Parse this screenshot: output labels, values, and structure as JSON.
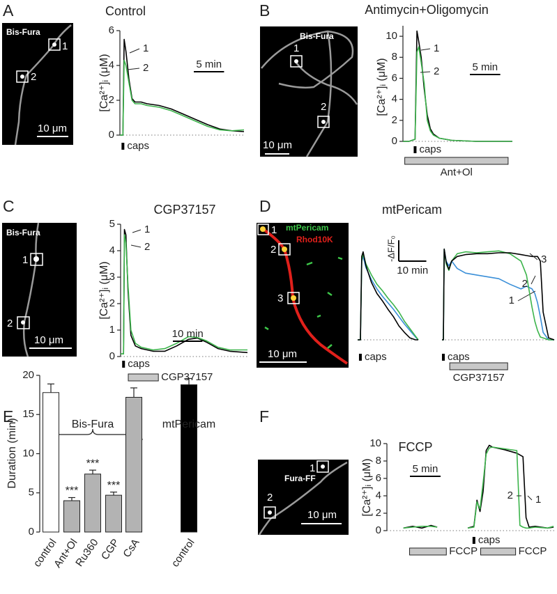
{
  "panels": [
    {
      "label": "A",
      "title": "Control",
      "image": {
        "label": "Bis-Fura",
        "rois": [
          "1",
          "2"
        ],
        "scale_bar": "10 μm"
      }
    },
    {
      "label": "B",
      "title": "Antimycin+Oligomycin",
      "image": {
        "label": "Bis-Fura",
        "rois": [
          "1",
          "2"
        ],
        "scale_bar": "10 μm"
      }
    },
    {
      "label": "C",
      "title": "CGP37157",
      "image": {
        "label": "Bis-Fura",
        "rois": [
          "1",
          "2"
        ],
        "scale_bar": "10 μm"
      }
    },
    {
      "label": "D",
      "title": "mtPericam",
      "image": {
        "channels": [
          "mtPericam",
          "Rhod10K"
        ],
        "rois": [
          "1",
          "2",
          "3"
        ],
        "scale_bar": "10 μm"
      }
    },
    {
      "label": "E"
    },
    {
      "label": "F",
      "title": "FCCP",
      "image": {
        "label": "Fura-FF",
        "rois": [
          "1",
          "2"
        ],
        "scale_bar": "10 μm"
      }
    }
  ],
  "chart_data": [
    {
      "type": "line",
      "ylabel": "[Ca²⁺]ᵢ (μM)",
      "xlim": [
        -0.5,
        20
      ],
      "ylim": [
        0,
        6
      ],
      "yticks": [
        0,
        2,
        4,
        6
      ],
      "x": [
        -0.5,
        0,
        0.2,
        0.5,
        1,
        1.5,
        2,
        3,
        4,
        6,
        8,
        10,
        12,
        14,
        16,
        18,
        20
      ],
      "series": [
        {
          "name": "1",
          "color": "#000000",
          "values": [
            0,
            0,
            5.5,
            4.8,
            3.2,
            2.1,
            1.9,
            1.9,
            1.8,
            1.7,
            1.5,
            1.2,
            0.9,
            0.6,
            0.35,
            0.25,
            0.2
          ]
        },
        {
          "name": "2",
          "color": "#3cb44b",
          "values": [
            0,
            0,
            4.3,
            4.0,
            3.0,
            2.0,
            1.8,
            1.8,
            1.7,
            1.6,
            1.4,
            1.1,
            0.8,
            0.5,
            0.3,
            0.25,
            0.3
          ]
        }
      ],
      "scale_bar": {
        "label": "5 min",
        "value": 5
      },
      "stimulus": {
        "label": "caps",
        "x": 0
      }
    },
    {
      "type": "line",
      "ylabel": "[Ca²⁺]ᵢ (μM)",
      "xlim": [
        -2,
        16
      ],
      "ylim": [
        0,
        11
      ],
      "yticks": [
        0,
        2,
        4,
        6,
        8,
        10
      ],
      "x": [
        -2,
        -1,
        0,
        0.3,
        0.6,
        1,
        1.5,
        2,
        2.5,
        3,
        4,
        6,
        10,
        16
      ],
      "series": [
        {
          "name": "1",
          "color": "#000000",
          "values": [
            0,
            0,
            0.2,
            10.5,
            9.5,
            8,
            5,
            2.5,
            1.2,
            0.7,
            0.3,
            0.1,
            0,
            0
          ]
        },
        {
          "name": "2",
          "color": "#3cb44b",
          "values": [
            0,
            0,
            0.2,
            8.5,
            9,
            7.5,
            5.5,
            2,
            1,
            0.6,
            0.3,
            0.1,
            0,
            0
          ]
        }
      ],
      "scale_bar": {
        "label": "5 min",
        "value": 5
      },
      "stimulus": {
        "label": "caps",
        "x": 0
      },
      "treatments": [
        {
          "label": "Ant+Ol",
          "start": -1.7,
          "end": 15.3
        }
      ]
    },
    {
      "type": "line",
      "ylabel": "[Ca²⁺]ᵢ (μM)",
      "xlim": [
        -1,
        42
      ],
      "ylim": [
        0,
        5
      ],
      "yticks": [
        0,
        1,
        2,
        3,
        4,
        5
      ],
      "x": [
        -1,
        0,
        0.3,
        0.8,
        1.5,
        2.5,
        4,
        6,
        10,
        14,
        18,
        22,
        25,
        28,
        32,
        36,
        42
      ],
      "series": [
        {
          "name": "1",
          "color": "#000000",
          "values": [
            0.1,
            0.1,
            4.8,
            4.6,
            2.5,
            0.8,
            0.4,
            0.3,
            0.2,
            0.2,
            0.4,
            0.65,
            0.7,
            0.55,
            0.3,
            0.2,
            0.15
          ]
        },
        {
          "name": "2",
          "color": "#3cb44b",
          "values": [
            0.1,
            0.1,
            4.6,
            4.3,
            2.7,
            1.0,
            0.5,
            0.35,
            0.25,
            0.3,
            0.5,
            0.75,
            0.72,
            0.6,
            0.35,
            0.25,
            0.25
          ]
        }
      ],
      "scale_bar": {
        "label": "10 min",
        "value": 10
      },
      "stimulus": {
        "label": "caps",
        "x": 0
      },
      "treatments": [
        {
          "label": "CGP37157",
          "start": 1.6,
          "end": 11.8
        }
      ]
    },
    {
      "type": "line",
      "xlim": [
        -1,
        21
      ],
      "ylim": [
        0,
        1
      ],
      "x": [
        -1,
        0,
        0.5,
        1,
        2,
        4,
        6,
        8,
        10,
        12,
        14,
        16,
        18,
        20,
        21
      ],
      "series": [
        {
          "color": "#3a8fd8",
          "values": [
            0,
            0,
            0.85,
            0.9,
            0.78,
            0.65,
            0.55,
            0.47,
            0.4,
            0.33,
            0.25,
            0.17,
            0.1,
            0.03,
            0
          ]
        },
        {
          "color": "#3cb44b",
          "values": [
            0,
            0,
            0.85,
            0.93,
            0.82,
            0.7,
            0.6,
            0.53,
            0.45,
            0.38,
            0.3,
            0.2,
            0.12,
            0.04,
            0
          ]
        },
        {
          "color": "#000000",
          "values": [
            0,
            0,
            0.9,
            0.95,
            0.8,
            0.62,
            0.5,
            0.42,
            0.33,
            0.25,
            0.15,
            0.08,
            0.02,
            0,
            0
          ]
        }
      ],
      "scale_bar": {
        "label": "10 min",
        "value": 10
      },
      "y_scale_bar": {
        "label": "-ΔF/F₀"
      },
      "stimulus": {
        "label": "caps",
        "x": 0
      }
    },
    {
      "type": "line",
      "xlim": [
        -0.5,
        40
      ],
      "ylim": [
        0,
        1
      ],
      "x": [
        -0.5,
        0,
        0.3,
        1,
        2,
        3,
        5,
        8,
        12,
        16,
        20,
        24,
        28,
        30,
        32,
        33,
        34,
        35,
        36,
        38,
        40
      ],
      "series": [
        {
          "name": "1",
          "color": "#3a8fd8",
          "values": [
            0,
            0,
            0.98,
            0.85,
            0.8,
            0.85,
            0.77,
            0.72,
            0.7,
            0.68,
            0.66,
            0.6,
            0.55,
            0.58,
            0.55,
            0.5,
            0.4,
            0.25,
            0.08,
            0,
            0
          ]
        },
        {
          "name": "2",
          "color": "#3cb44b",
          "values": [
            0,
            0,
            0.98,
            0.82,
            0.75,
            0.85,
            0.93,
            0.95,
            0.94,
            0.95,
            0.96,
            0.93,
            0.85,
            0.7,
            0.35,
            0.2,
            0.1,
            0.03,
            0.02,
            0,
            0
          ]
        },
        {
          "name": "3",
          "color": "#000000",
          "values": [
            0,
            0,
            0.98,
            0.84,
            0.76,
            0.85,
            0.9,
            0.92,
            0.93,
            0.93,
            0.94,
            0.94,
            0.92,
            0.91,
            0.9,
            0.9,
            0.9,
            0.85,
            0.3,
            0.02,
            0
          ]
        }
      ],
      "stimulus": {
        "label": "caps",
        "x": 0
      },
      "treatments": [
        {
          "label": "CGP37157",
          "start": 2.3,
          "end": 23.2
        }
      ]
    },
    {
      "type": "bar",
      "ylabel": "Duration (min)",
      "ylim": [
        0,
        20
      ],
      "yticks": [
        0,
        5,
        10,
        15,
        20
      ],
      "categories": [
        "control",
        "Ant+Ol",
        "Ru360",
        "CGP",
        "CsA",
        "control"
      ],
      "values": [
        17.8,
        4,
        7.4,
        4.7,
        17.2,
        18.8
      ],
      "errors": [
        1.1,
        0.4,
        0.5,
        0.4,
        1.2,
        0.8
      ],
      "colors": [
        "#ffffff",
        "#b3b3b3",
        "#b3b3b3",
        "#b3b3b3",
        "#b3b3b3",
        "#000000"
      ],
      "significance": [
        null,
        "***",
        "***",
        "***",
        null,
        null
      ],
      "groups": [
        {
          "label": "Bis-Fura"
        },
        {
          "label": "mtPericam"
        }
      ]
    },
    {
      "type": "line",
      "ylabel": "[Ca²⁺]ᵢ (μM)",
      "xlim": [
        -14.2,
        13.1
      ],
      "ylim": [
        0,
        10
      ],
      "yticks": [
        0,
        2,
        4,
        6,
        8,
        10
      ],
      "x": [
        -11.5,
        -10,
        -8.5,
        -7,
        -6,
        -3,
        -1,
        0,
        0.5,
        1,
        1.5,
        2,
        2.5,
        3,
        5,
        7,
        7.5,
        8,
        8.5,
        9,
        10,
        12,
        13
      ],
      "series": [
        {
          "name": "1",
          "color": "#000000",
          "values": [
            0.3,
            0.5,
            0.3,
            0.6,
            0.4,
            null,
            0.3,
            0.5,
            3.5,
            2.2,
            4.5,
            9.2,
            9.8,
            9.6,
            9.3,
            8.9,
            8.7,
            8.5,
            1.5,
            0.4,
            0.5,
            0.3,
            0.4
          ]
        },
        {
          "name": "2",
          "color": "#3cb44b",
          "values": [
            0.3,
            0.4,
            0.5,
            0.5,
            0.4,
            null,
            0.3,
            0.4,
            3.3,
            2.5,
            5.5,
            8.8,
            9.5,
            9.6,
            9.4,
            9.2,
            0.6,
            0.4,
            0.3,
            0.3,
            0.4,
            0.3,
            0.5
          ]
        }
      ],
      "scale_bar": {
        "label": "5 min",
        "value": 5
      },
      "stimulus": {
        "label": "caps",
        "x": 0
      },
      "treatments": [
        {
          "label": "FCCP",
          "start": -10.5,
          "end": -4.5
        },
        {
          "label": "FCCP",
          "start": 1.1,
          "end": 6.8
        }
      ]
    }
  ]
}
